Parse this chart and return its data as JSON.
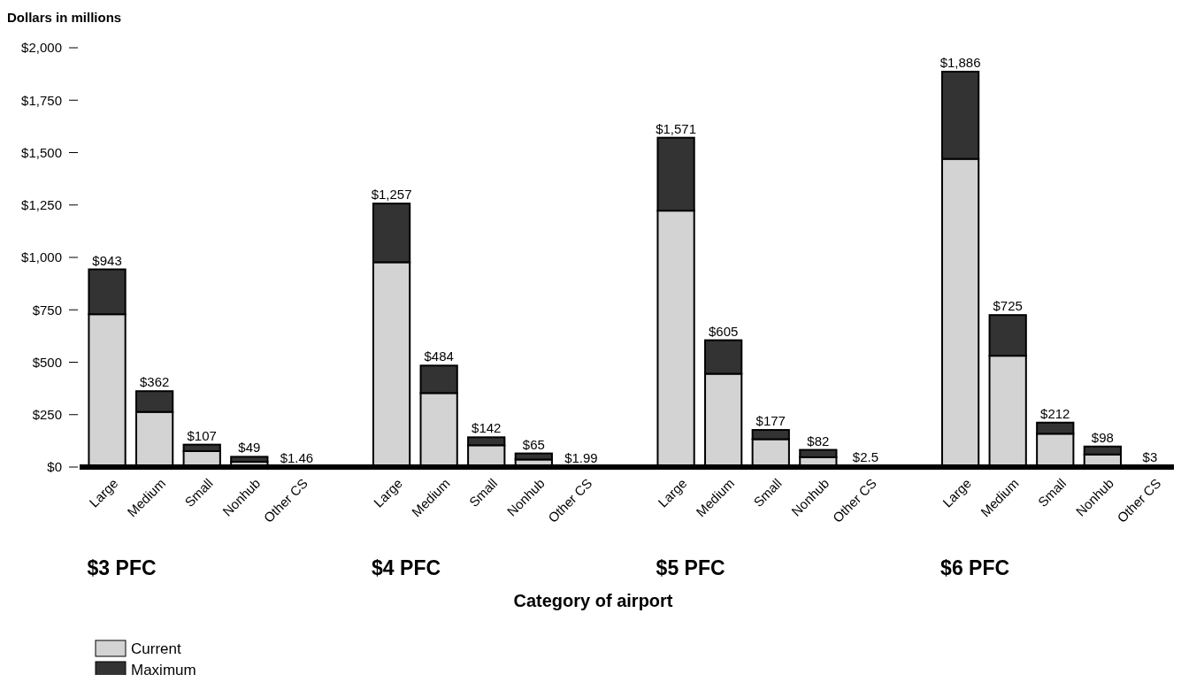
{
  "chart_data": {
    "type": "bar",
    "stacked": true,
    "ylabel": "Dollars in millions",
    "xlabel": "Category of airport",
    "categories": [
      "Large",
      "Medium",
      "Small",
      "Nonhub",
      "Other CS",
      null,
      "Large",
      "Medium",
      "Small",
      "Nonhub",
      "Other CS",
      null,
      "Large",
      "Medium",
      "Small",
      "Nonhub",
      "Other CS",
      null,
      "Large",
      "Medium",
      "Small",
      "Nonhub",
      "Other CS"
    ],
    "series": [
      {
        "name": "Current",
        "color": "#d3d3d3",
        "values": [
          729,
          263,
          76,
          25,
          1.1,
          null,
          977,
          353,
          104,
          36,
          1.5,
          null,
          1223,
          445,
          133,
          47,
          1.9,
          null,
          1470,
          531,
          159,
          60,
          2.3
        ]
      },
      {
        "name": "Maximum",
        "color": "#333333",
        "values": [
          214,
          99,
          31,
          24,
          0.36,
          null,
          280,
          131,
          38,
          29,
          0.49,
          null,
          348,
          160,
          44,
          35,
          0.6,
          null,
          416,
          194,
          53,
          38,
          0.7
        ]
      }
    ],
    "totals": [
      "$943",
      "$362",
      "$107",
      "$49",
      "$1.46",
      null,
      "$1,257",
      "$484",
      "$142",
      "$65",
      "$1.99",
      null,
      "$1,571",
      "$605",
      "$177",
      "$82",
      "$2.5",
      null,
      "$1,886",
      "$725",
      "$212",
      "$98",
      "$3"
    ],
    "ylim": [
      0,
      2000
    ],
    "yticks": [
      {
        "value": 0,
        "label": "$0"
      },
      {
        "value": 250,
        "label": "$250"
      },
      {
        "value": 500,
        "label": "$500"
      },
      {
        "value": 750,
        "label": "$750"
      },
      {
        "value": 1000,
        "label": "$1,000"
      },
      {
        "value": 1250,
        "label": "$1,250"
      },
      {
        "value": 1500,
        "label": "$1,500"
      },
      {
        "value": 1750,
        "label": "$1,750"
      },
      {
        "value": 2000,
        "label": "$2,000"
      }
    ],
    "annotations": [
      "$3 PFC",
      "$4 PFC",
      "$5 PFC",
      "$6 PFC"
    ],
    "legend": "bottom left",
    "grid": false
  }
}
